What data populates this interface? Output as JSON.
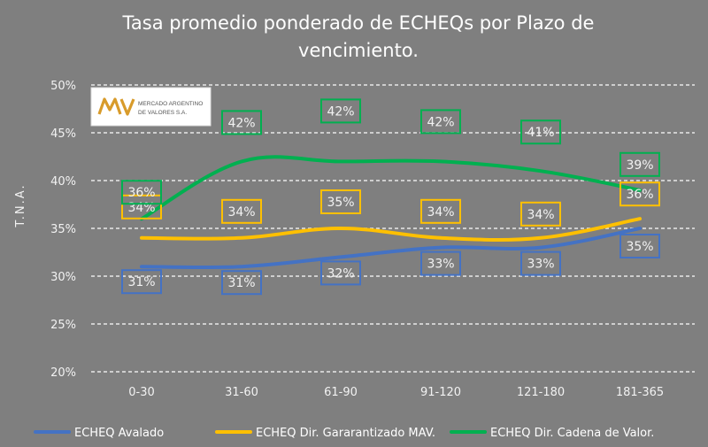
{
  "chart_data": {
    "type": "line",
    "title_lines": [
      "Tasa promedio ponderado de ECHEQs por Plazo de",
      "vencimiento."
    ],
    "ylabel": "T.N.A.",
    "xlabel": "",
    "ylim": [
      20,
      50
    ],
    "yticks": [
      20,
      25,
      30,
      35,
      40,
      45,
      50
    ],
    "ytick_labels": [
      "20%",
      "25%",
      "30%",
      "35%",
      "40%",
      "45%",
      "50%"
    ],
    "categories": [
      "0-30",
      "31-60",
      "61-90",
      "91-120",
      "121-180",
      "181-365"
    ],
    "grid": "horizontal-dashed",
    "legend_position": "bottom",
    "series": [
      {
        "name": "ECHEQ Avalado",
        "color": "#4472c4",
        "values": [
          31,
          31,
          32,
          33,
          33,
          35
        ],
        "labels": [
          "31%",
          "31%",
          "32%",
          "33%",
          "33%",
          "35%"
        ]
      },
      {
        "name": "ECHEQ Dir. Gararantizado MAV.",
        "color": "#ffc000",
        "values": [
          34,
          34,
          35,
          34,
          34,
          36
        ],
        "labels": [
          "34%",
          "34%",
          "35%",
          "34%",
          "34%",
          "36%"
        ]
      },
      {
        "name": "ECHEQ Dir. Cadena de Valor.",
        "color": "#00b050",
        "values": [
          36,
          42,
          42,
          42,
          41,
          39
        ],
        "labels": [
          "36%",
          "42%",
          "42%",
          "42%",
          "41%",
          "39%"
        ]
      }
    ]
  },
  "logo": {
    "line1": "MERCADO ARGENTINO",
    "line2": "DE VALORES S.A."
  }
}
